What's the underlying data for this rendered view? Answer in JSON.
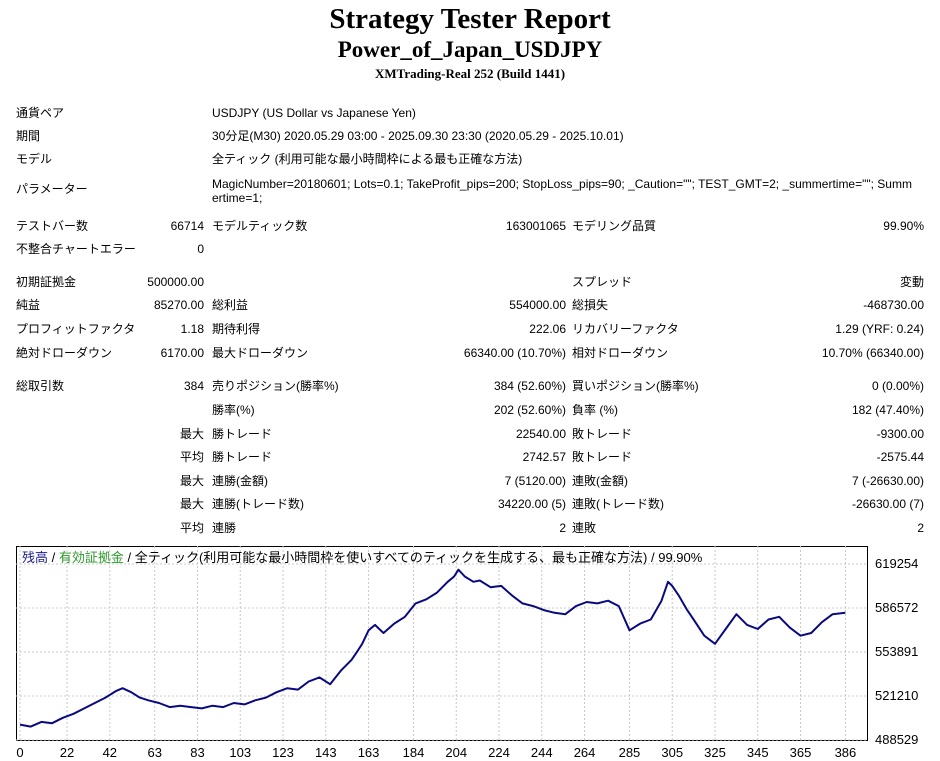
{
  "header": {
    "title": "Strategy Tester Report",
    "expert": "Power_of_Japan_USDJPY",
    "server": "XMTrading-Real 252 (Build 1441)"
  },
  "info": {
    "symbol_label": "通貨ペア",
    "symbol_value": "USDJPY (US Dollar vs Japanese Yen)",
    "period_label": "期間",
    "period_value": "30分足(M30) 2020.05.29 03:00 - 2025.09.30 23:30 (2020.05.29 - 2025.10.01)",
    "model_label": "モデル",
    "model_value": "全ティック (利用可能な最小時間枠による最も正確な方法)",
    "params_label": "パラメーター",
    "params_value": "MagicNumber=20180601; Lots=0.1; TakeProfit_pips=200; StopLoss_pips=90; _Caution=\"\"; TEST_GMT=2; _summertime=\"\"; Summertime=1;"
  },
  "stats": {
    "bars_label": "テストバー数",
    "bars_value": "66714",
    "ticks_label": "モデルティック数",
    "ticks_value": "163001065",
    "quality_label": "モデリング品質",
    "quality_value": "99.90%",
    "mismatch_label": "不整合チャートエラー",
    "mismatch_value": "0",
    "deposit_label": "初期証拠金",
    "deposit_value": "500000.00",
    "spread_label": "スプレッド",
    "spread_value": "変動",
    "net_label": "純益",
    "net_value": "85270.00",
    "gross_profit_label": "総利益",
    "gross_profit_value": "554000.00",
    "gross_loss_label": "総損失",
    "gross_loss_value": "-468730.00",
    "pf_label": "プロフィットファクタ",
    "pf_value": "1.18",
    "expected_label": "期待利得",
    "expected_value": "222.06",
    "recovery_label": "リカバリーファクタ",
    "recovery_value": "1.29 (YRF: 0.24)",
    "abs_dd_label": "絶対ドローダウン",
    "abs_dd_value": "6170.00",
    "max_dd_label": "最大ドローダウン",
    "max_dd_value": "66340.00 (10.70%)",
    "rel_dd_label": "相対ドローダウン",
    "rel_dd_value": "10.70% (66340.00)",
    "total_trades_label": "総取引数",
    "total_trades_value": "384",
    "short_label": "売りポジション(勝率%)",
    "short_value": "384 (52.60%)",
    "long_label": "買いポジション(勝率%)",
    "long_value": "0 (0.00%)",
    "win_rate_label": "勝率(%)",
    "win_rate_value": "202 (52.60%)",
    "loss_rate_label": "負率 (%)",
    "loss_rate_value": "182 (47.40%)",
    "max_label_1": "最大",
    "largest_win_label": "勝トレード",
    "largest_win_value": "22540.00",
    "largest_loss_label": "敗トレード",
    "largest_loss_value": "-9300.00",
    "avg_label_1": "平均",
    "avg_win_label": "勝トレード",
    "avg_win_value": "2742.57",
    "avg_loss_label": "敗トレード",
    "avg_loss_value": "-2575.44",
    "max_label_2": "最大",
    "cons_win_amt_label": "連勝(金額)",
    "cons_win_amt_value": "7 (5120.00)",
    "cons_loss_amt_label": "連敗(金額)",
    "cons_loss_amt_value": "7 (-26630.00)",
    "max_label_3": "最大",
    "cons_win_trades_label": "連勝(トレード数)",
    "cons_win_trades_value": "34220.00 (5)",
    "cons_loss_trades_label": "連敗(トレード数)",
    "cons_loss_trades_value": "-26630.00 (7)",
    "avg_label_2": "平均",
    "avg_cons_win_label": "連勝",
    "avg_cons_win_value": "2",
    "avg_cons_loss_label": "連敗",
    "avg_cons_loss_value": "2"
  },
  "chart_legend": {
    "balance": "残高",
    "sep1": " / ",
    "equity": "有効証拠金",
    "sep2": " / ",
    "rest": "全ティック(利用可能な最小時間枠を使いすべてのティックを生成する、最も正確な方法) / 99.90%"
  },
  "colors": {
    "balance_line": "#0a0a80",
    "equity_text": "#2a9a2a",
    "grid": "#c8c8c8"
  },
  "chart_data": {
    "type": "line",
    "title": "",
    "xlabel": "",
    "ylabel": "",
    "xlim": [
      0,
      390
    ],
    "ylim": [
      488529,
      630000
    ],
    "x_ticks": [
      "0",
      "22",
      "42",
      "63",
      "83",
      "103",
      "123",
      "143",
      "163",
      "184",
      "204",
      "224",
      "244",
      "264",
      "285",
      "305",
      "325",
      "345",
      "365",
      "386"
    ],
    "x_tick_values": [
      0,
      22,
      42,
      63,
      83,
      103,
      123,
      143,
      163,
      184,
      204,
      224,
      244,
      264,
      285,
      305,
      325,
      345,
      365,
      386
    ],
    "y_ticks": [
      "619254",
      "586572",
      "553891",
      "521210",
      "488529"
    ],
    "y_tick_values": [
      619254,
      586572,
      553891,
      521210,
      488529
    ],
    "grid": true,
    "series": [
      {
        "x": [
          0,
          5,
          10,
          15,
          20,
          25,
          30,
          35,
          40,
          45,
          48,
          52,
          56,
          60,
          65,
          70,
          75,
          80,
          85,
          90,
          95,
          100,
          105,
          110,
          115,
          120,
          125,
          130,
          135,
          140,
          145,
          150,
          155,
          158,
          160,
          163,
          166,
          170,
          175,
          180,
          185,
          190,
          195,
          200,
          203,
          205,
          208,
          212,
          215,
          220,
          225,
          230,
          235,
          240,
          245,
          250,
          255,
          260,
          265,
          270,
          275,
          280,
          285,
          290,
          295,
          300,
          303,
          305,
          308,
          312,
          315,
          320,
          325,
          330,
          335,
          340,
          345,
          350,
          355,
          360,
          365,
          370,
          375,
          380,
          386
        ],
        "values": [
          500000,
          498500,
          502000,
          501000,
          505000,
          508000,
          512000,
          516000,
          520000,
          525000,
          527000,
          524000,
          520000,
          518000,
          516000,
          513000,
          514000,
          513000,
          512000,
          514000,
          513000,
          516000,
          515000,
          518000,
          520000,
          524000,
          527000,
          526000,
          532000,
          535000,
          530000,
          540000,
          548000,
          555000,
          560000,
          570000,
          574000,
          568000,
          575000,
          580000,
          590000,
          593000,
          598000,
          606000,
          610000,
          615000,
          610000,
          606000,
          607000,
          602000,
          603000,
          596000,
          590000,
          588000,
          585000,
          583000,
          582000,
          588000,
          591000,
          590000,
          592000,
          588000,
          570000,
          575000,
          578000,
          592000,
          606000,
          603000,
          596000,
          585000,
          578000,
          566000,
          560000,
          571000,
          582000,
          574000,
          571000,
          578000,
          580000,
          572000,
          566000,
          568000,
          576000,
          582000,
          583000
        ]
      }
    ]
  }
}
